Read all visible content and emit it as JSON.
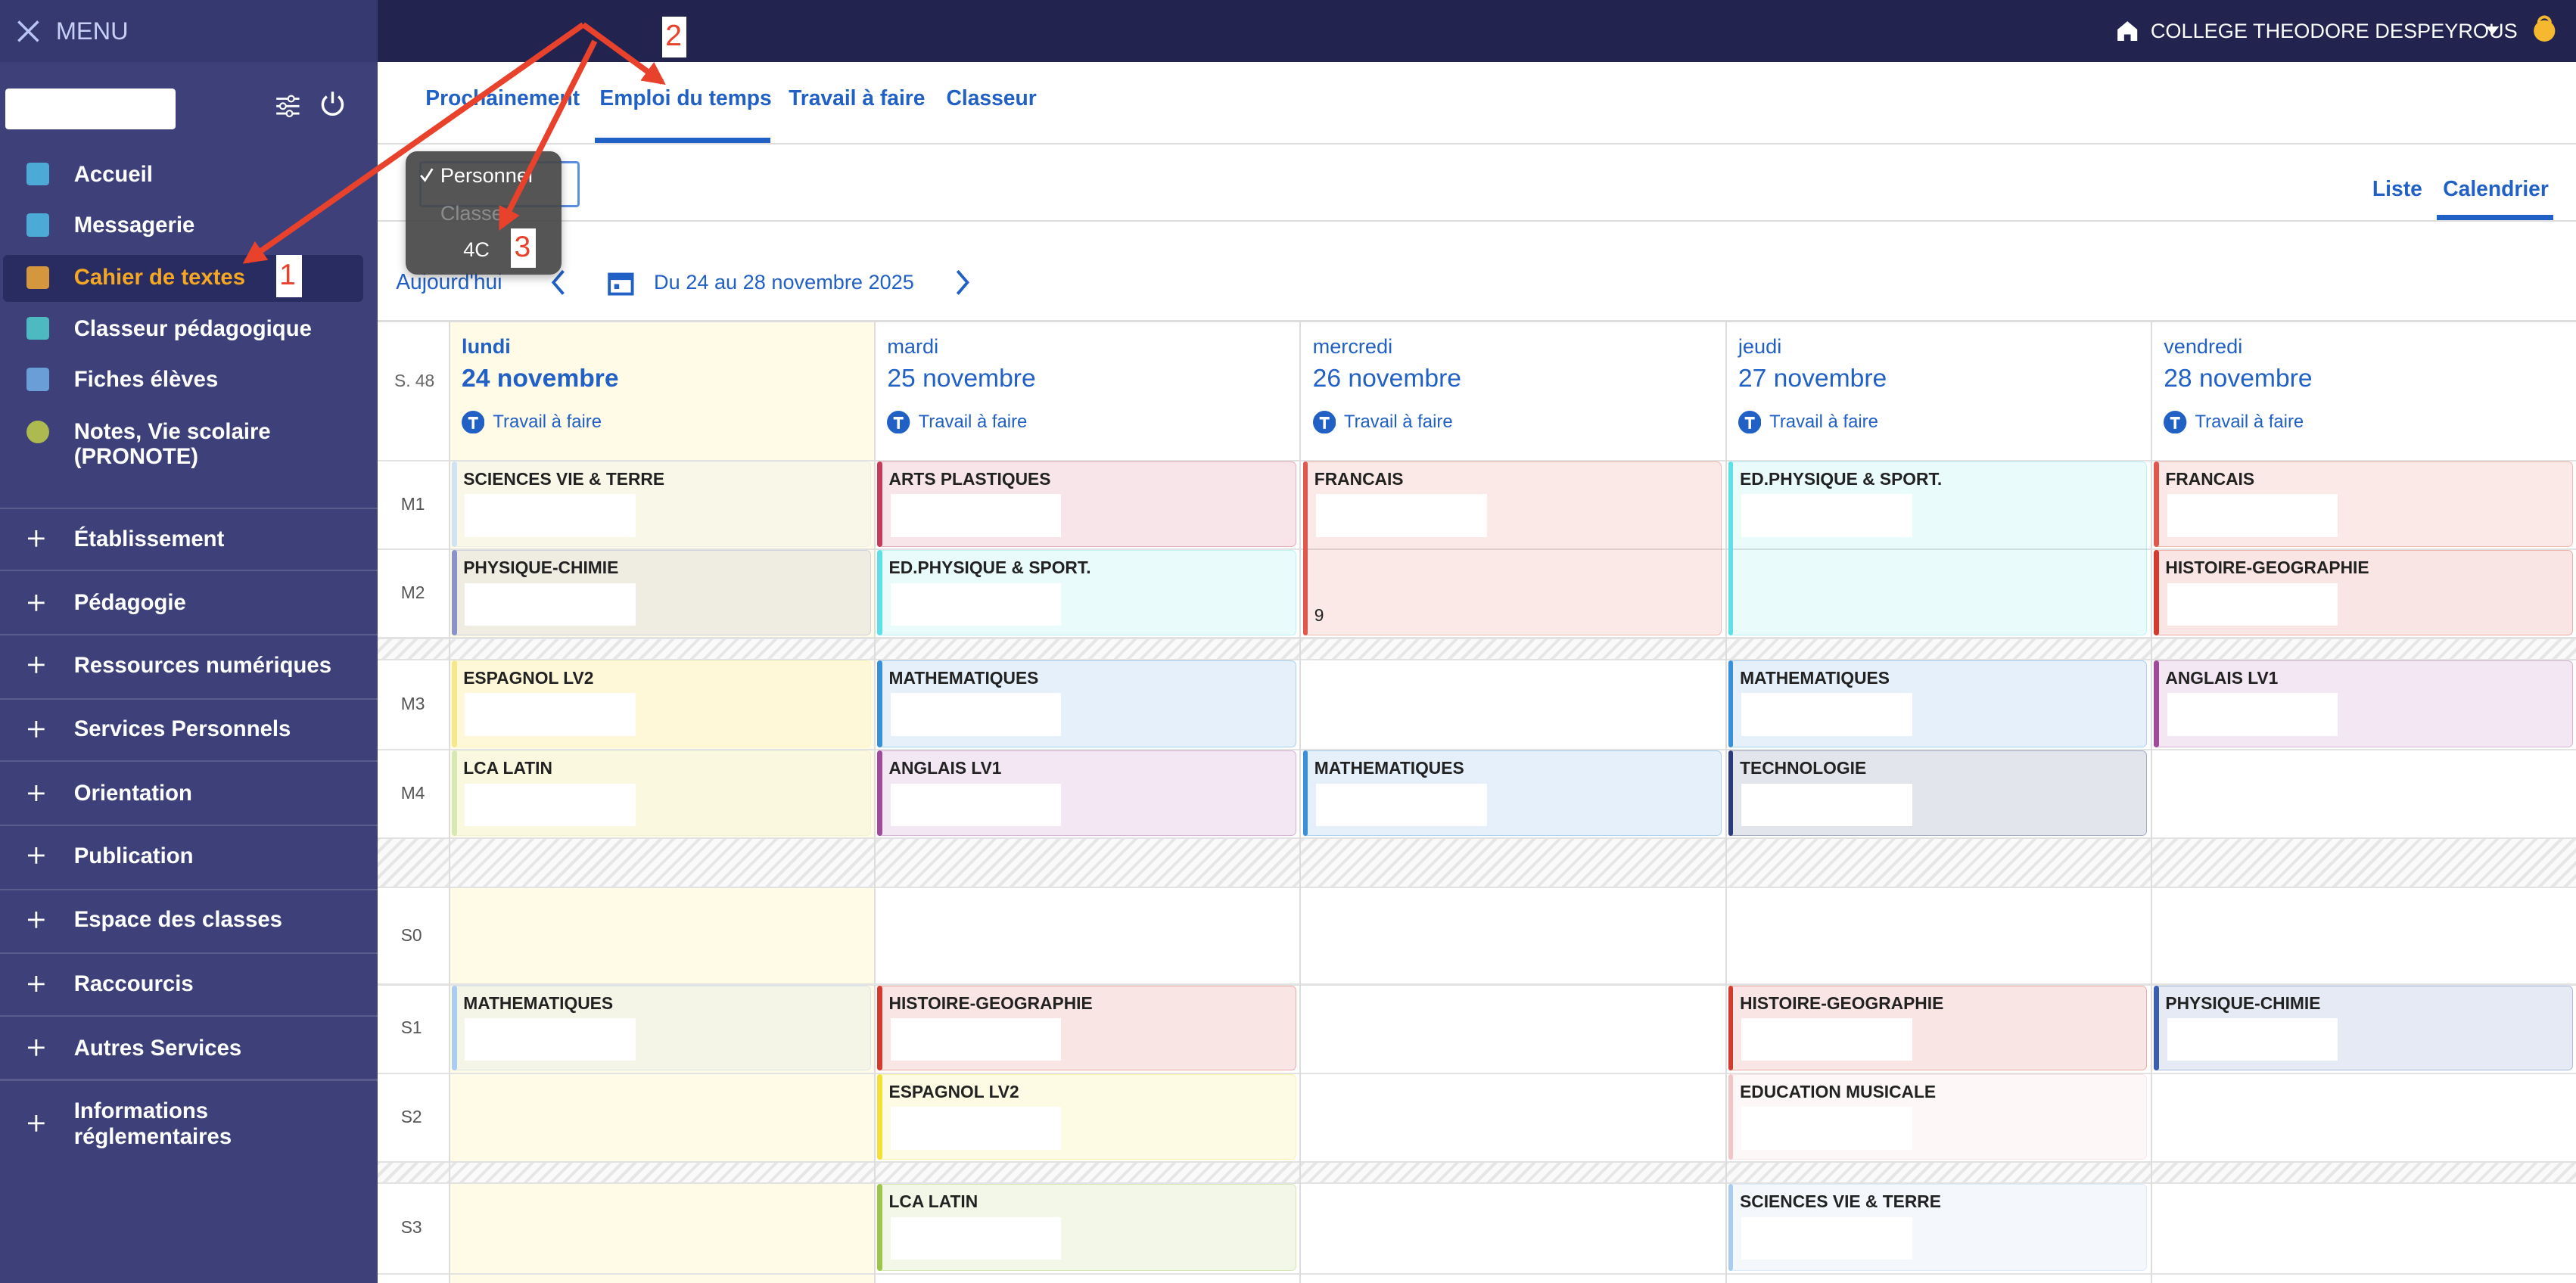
{
  "menu": {
    "title": "MENU",
    "items": [
      "Accueil",
      "Messagerie",
      "Cahier de textes",
      "Classeur pédagogique",
      "Fiches élèves",
      "Notes, Vie scolaire (PRONOTE)"
    ],
    "sections": [
      "Établissement",
      "Pédagogie",
      "Ressources numériques",
      "Services Personnels",
      "Orientation",
      "Publication",
      "Espace des classes",
      "Raccourcis",
      "Autres Services",
      "Informations réglementaires"
    ]
  },
  "header": {
    "school": "COLLEGE THEODORE DESPEYROUS"
  },
  "tabs": [
    "Prochainement",
    "Emploi du temps",
    "Travail à faire",
    "Classeur"
  ],
  "dropdown": [
    "Personnel",
    "Classe",
    "4C"
  ],
  "views": [
    "Liste",
    "Calendrier"
  ],
  "navigation": {
    "today": "Aujourd'hui",
    "range": "Du 24 au 28 novembre 2025"
  },
  "week": "S. 48",
  "days": [
    {
      "name": "lundi",
      "date": "24 novembre",
      "todo": "Travail à faire"
    },
    {
      "name": "mardi",
      "date": "25 novembre",
      "todo": "Travail à faire"
    },
    {
      "name": "mercredi",
      "date": "26 novembre",
      "todo": "Travail à faire"
    },
    {
      "name": "jeudi",
      "date": "27 novembre",
      "todo": "Travail à faire"
    },
    {
      "name": "vendredi",
      "date": "28 novembre",
      "todo": "Travail à faire"
    }
  ],
  "slots": [
    "M1",
    "M2",
    "M3",
    "M4",
    "S0",
    "S1",
    "S2",
    "S3"
  ],
  "lessons": [
    {
      "day": 0,
      "slot": 0,
      "span": 1,
      "subject": "SCIENCES VIE & TERRE",
      "color": "#cfe3f5"
    },
    {
      "day": 0,
      "slot": 1,
      "span": 1,
      "subject": "PHYSIQUE-CHIMIE",
      "color": "#8a93c9"
    },
    {
      "day": 0,
      "slot": 2,
      "span": 1,
      "subject": "ESPAGNOL LV2",
      "color": "#f5e98a"
    },
    {
      "day": 0,
      "slot": 3,
      "span": 1,
      "subject": "LCA LATIN",
      "color": "#d6e8b4"
    },
    {
      "day": 0,
      "slot": 5,
      "span": 1,
      "subject": "MATHEMATIQUES",
      "color": "#a9cdf0"
    },
    {
      "day": 1,
      "slot": 0,
      "span": 1,
      "subject": "ARTS PLASTIQUES",
      "color": "#c43c5a"
    },
    {
      "day": 1,
      "slot": 1,
      "span": 1,
      "subject": "ED.PHYSIQUE & SPORT.",
      "color": "#5ee0e8"
    },
    {
      "day": 1,
      "slot": 2,
      "span": 1,
      "subject": "MATHEMATIQUES",
      "color": "#3a8fd9"
    },
    {
      "day": 1,
      "slot": 3,
      "span": 1,
      "subject": "ANGLAIS LV1",
      "color": "#a04a9c"
    },
    {
      "day": 1,
      "slot": 5,
      "span": 1,
      "subject": "HISTOIRE-GEOGRAPHIE",
      "color": "#d23b2e"
    },
    {
      "day": 1,
      "slot": 6,
      "span": 1,
      "subject": "ESPAGNOL LV2",
      "color": "#f2e036"
    },
    {
      "day": 1,
      "slot": 7,
      "span": 1,
      "subject": "LCA LATIN",
      "color": "#9cc64a"
    },
    {
      "day": 2,
      "slot": 0,
      "span": 2,
      "subject": "FRANCAIS",
      "color": "#e0584c",
      "note": "9"
    },
    {
      "day": 2,
      "slot": 3,
      "span": 1,
      "subject": "MATHEMATIQUES",
      "color": "#3a8fd9"
    },
    {
      "day": 3,
      "slot": 0,
      "span": 2,
      "subject": "ED.PHYSIQUE & SPORT.",
      "color": "#5ee0e8"
    },
    {
      "day": 3,
      "slot": 2,
      "span": 1,
      "subject": "MATHEMATIQUES",
      "color": "#3a8fd9"
    },
    {
      "day": 3,
      "slot": 3,
      "span": 1,
      "subject": "TECHNOLOGIE",
      "color": "#2a3a7a"
    },
    {
      "day": 3,
      "slot": 5,
      "span": 1,
      "subject": "HISTOIRE-GEOGRAPHIE",
      "color": "#d23b2e"
    },
    {
      "day": 3,
      "slot": 6,
      "span": 1,
      "subject": "EDUCATION MUSICALE",
      "color": "#f2c4c8"
    },
    {
      "day": 3,
      "slot": 7,
      "span": 1,
      "subject": "SCIENCES VIE & TERRE",
      "color": "#a9cdf0"
    },
    {
      "day": 4,
      "slot": 0,
      "span": 1,
      "subject": "FRANCAIS",
      "color": "#e0584c"
    },
    {
      "day": 4,
      "slot": 1,
      "span": 1,
      "subject": "HISTOIRE-GEOGRAPHIE",
      "color": "#d23b2e"
    },
    {
      "day": 4,
      "slot": 2,
      "span": 1,
      "subject": "ANGLAIS LV1",
      "color": "#a04a9c"
    },
    {
      "day": 4,
      "slot": 5,
      "span": 1,
      "subject": "PHYSIQUE-CHIMIE",
      "color": "#3a5fb0"
    }
  ],
  "annotations": [
    "1",
    "2",
    "3"
  ]
}
